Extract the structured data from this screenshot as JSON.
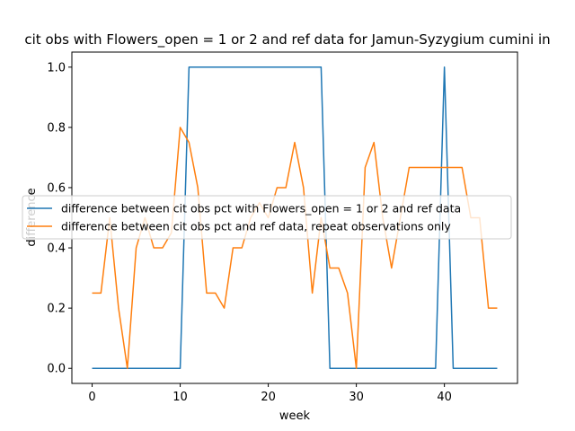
{
  "chart_data": {
    "type": "line",
    "title": "cit obs with Flowers_open = 1 or 2 and ref data for Jamun-Syzygium cumini in",
    "xlabel": "week",
    "ylabel": "difference",
    "xlim": [
      -2.3,
      48.3
    ],
    "ylim": [
      -0.05,
      1.05
    ],
    "xticks": [
      0,
      10,
      20,
      30,
      40
    ],
    "yticks": [
      0.0,
      0.2,
      0.4,
      0.6,
      0.8,
      1.0
    ],
    "grid": false,
    "legend_position": "center",
    "colors": {
      "series1": "#1f77b4",
      "series2": "#ff7f0e"
    },
    "x": [
      0,
      1,
      2,
      3,
      4,
      5,
      6,
      7,
      8,
      9,
      10,
      11,
      12,
      13,
      14,
      15,
      16,
      17,
      18,
      19,
      20,
      21,
      22,
      23,
      24,
      25,
      26,
      27,
      28,
      29,
      30,
      31,
      32,
      33,
      34,
      35,
      36,
      37,
      38,
      39,
      40,
      41,
      42,
      43,
      44,
      45,
      46
    ],
    "series": [
      {
        "name": "difference between cit obs pct with Flowers_open = 1 or 2 and ref data",
        "values": [
          0,
          0,
          0,
          0,
          0,
          0,
          0,
          0,
          0,
          0,
          0,
          1,
          1,
          1,
          1,
          1,
          1,
          1,
          1,
          1,
          1,
          1,
          1,
          1,
          1,
          1,
          1,
          0,
          0,
          0,
          0,
          0,
          0,
          0,
          0,
          0,
          0,
          0,
          0,
          0,
          1,
          0,
          0,
          0,
          0,
          0,
          0
        ]
      },
      {
        "name": "difference between cit obs pct and ref data, repeat observations only",
        "values": [
          0.25,
          0.25,
          0.5,
          0.2,
          0.0,
          0.4,
          0.5,
          0.4,
          0.4,
          0.45,
          0.8,
          0.75,
          0.6,
          0.25,
          0.25,
          0.2,
          0.4,
          0.4,
          0.5,
          0.55,
          0.5,
          0.6,
          0.6,
          0.75,
          0.6,
          0.25,
          0.5,
          0.333,
          0.333,
          0.25,
          0.0,
          0.667,
          0.75,
          0.5,
          0.333,
          0.5,
          0.667,
          0.667,
          0.667,
          0.667,
          0.667,
          0.667,
          0.667,
          0.5,
          0.5,
          0.2,
          0.2
        ]
      }
    ]
  }
}
